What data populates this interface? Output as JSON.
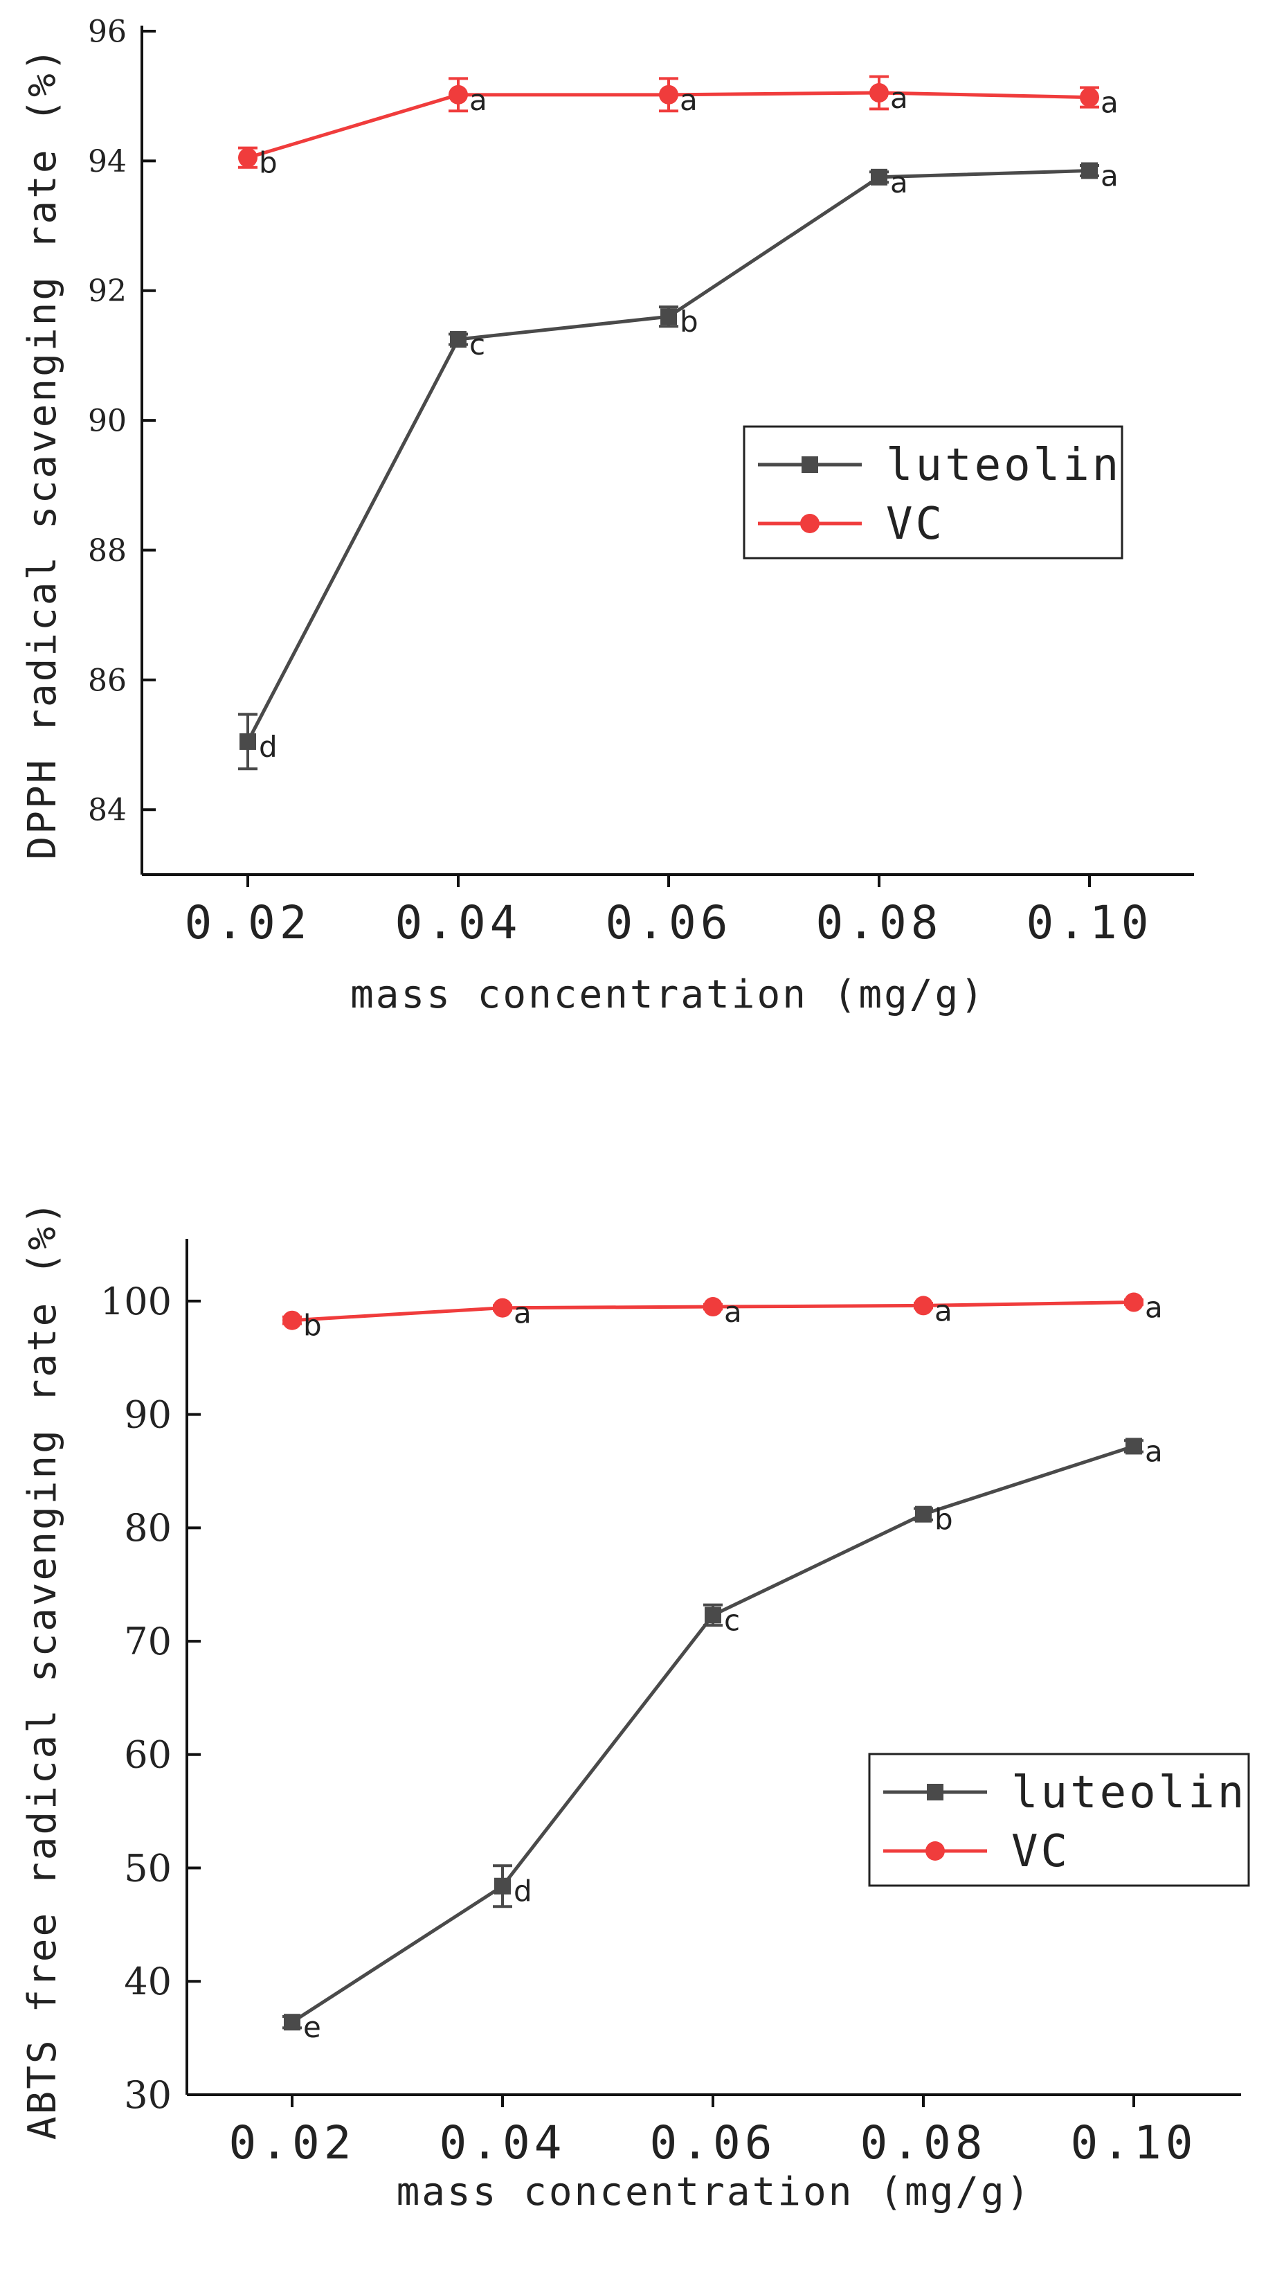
{
  "chart_data": [
    {
      "type": "line",
      "title": "",
      "xlabel": "mass concentration (mg/g)",
      "ylabel": "DPPH radical scavenging rate (%)",
      "categories": [
        "0.02",
        "0.04",
        "0.06",
        "0.08",
        "0.10"
      ],
      "ylim": [
        83,
        96
      ],
      "yticks": [
        "84",
        "86",
        "88",
        "90",
        "92",
        "94",
        "96"
      ],
      "legend_position": "center-right",
      "series": [
        {
          "name": "luteolin",
          "color": "#4a4a4a",
          "marker": "square",
          "values": [
            85.05,
            91.25,
            91.6,
            93.75,
            93.85
          ],
          "errors": [
            0.42,
            0.08,
            0.15,
            0.08,
            0.08
          ],
          "letters": [
            "d",
            "c",
            "b",
            "a",
            "a"
          ]
        },
        {
          "name": "VC",
          "color": "#f03c3c",
          "marker": "circle",
          "values": [
            94.05,
            95.02,
            95.02,
            95.05,
            94.98
          ],
          "errors": [
            0.15,
            0.25,
            0.25,
            0.25,
            0.15
          ],
          "letters": [
            "b",
            "a",
            "a",
            "a",
            "a"
          ]
        }
      ]
    },
    {
      "type": "line",
      "title": "",
      "xlabel": "mass concentration (mg/g)",
      "ylabel": "ABTS free radical scavenging rate (%)",
      "categories": [
        "0.02",
        "0.04",
        "0.06",
        "0.08",
        "0.10"
      ],
      "ylim": [
        30,
        105
      ],
      "yticks": [
        "30",
        "40",
        "50",
        "60",
        "70",
        "80",
        "90",
        "100"
      ],
      "legend_position": "center-right",
      "series": [
        {
          "name": "luteolin",
          "color": "#4a4a4a",
          "marker": "square",
          "values": [
            36.4,
            48.4,
            72.3,
            81.2,
            87.2
          ],
          "errors": [
            0.5,
            1.8,
            0.9,
            0.5,
            0.5
          ],
          "letters": [
            "e",
            "d",
            "c",
            "b",
            "a"
          ]
        },
        {
          "name": "VC",
          "color": "#f03c3c",
          "marker": "circle",
          "values": [
            98.3,
            99.4,
            99.5,
            99.6,
            99.9
          ],
          "errors": [
            0.3,
            0.2,
            0.2,
            0.2,
            0.2
          ],
          "letters": [
            "b",
            "a",
            "a",
            "a",
            "a"
          ]
        }
      ]
    }
  ]
}
